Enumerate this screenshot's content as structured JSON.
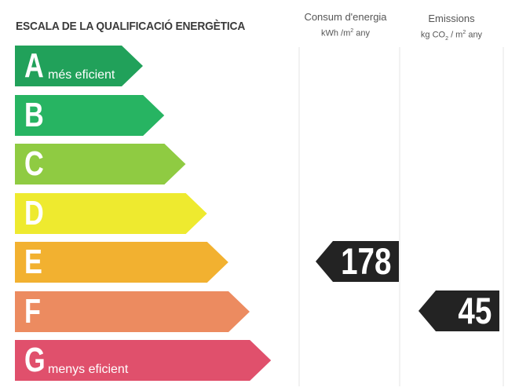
{
  "title": "ESCALA DE LA QUALIFICACIÓ ENERGÈTICA",
  "columns": {
    "energy": {
      "label": "Consum d'energia",
      "unit_pre": "kWh /m",
      "unit_sup": "2",
      "unit_post": " any"
    },
    "emissions": {
      "label": "Emissions",
      "unit_pre": "kg CO",
      "unit_sub": "2",
      "unit_mid": " / m",
      "unit_sup": "2",
      "unit_post": " any"
    }
  },
  "classes": [
    {
      "letter": "A",
      "sub": "més eficient",
      "color": "#21a15a"
    },
    {
      "letter": "B",
      "sub": "",
      "color": "#27b462"
    },
    {
      "letter": "C",
      "sub": "",
      "color": "#8fcb42"
    },
    {
      "letter": "D",
      "sub": "",
      "color": "#eeea2f"
    },
    {
      "letter": "E",
      "sub": "",
      "color": "#f2b130"
    },
    {
      "letter": "F",
      "sub": "",
      "color": "#ec8b60"
    },
    {
      "letter": "G",
      "sub": "menys eficient",
      "color": "#e0506c"
    }
  ],
  "energy_rating": {
    "value": "178",
    "class": "E"
  },
  "emissions_rating": {
    "value": "45",
    "class": "F"
  },
  "marker_color": "#232323"
}
